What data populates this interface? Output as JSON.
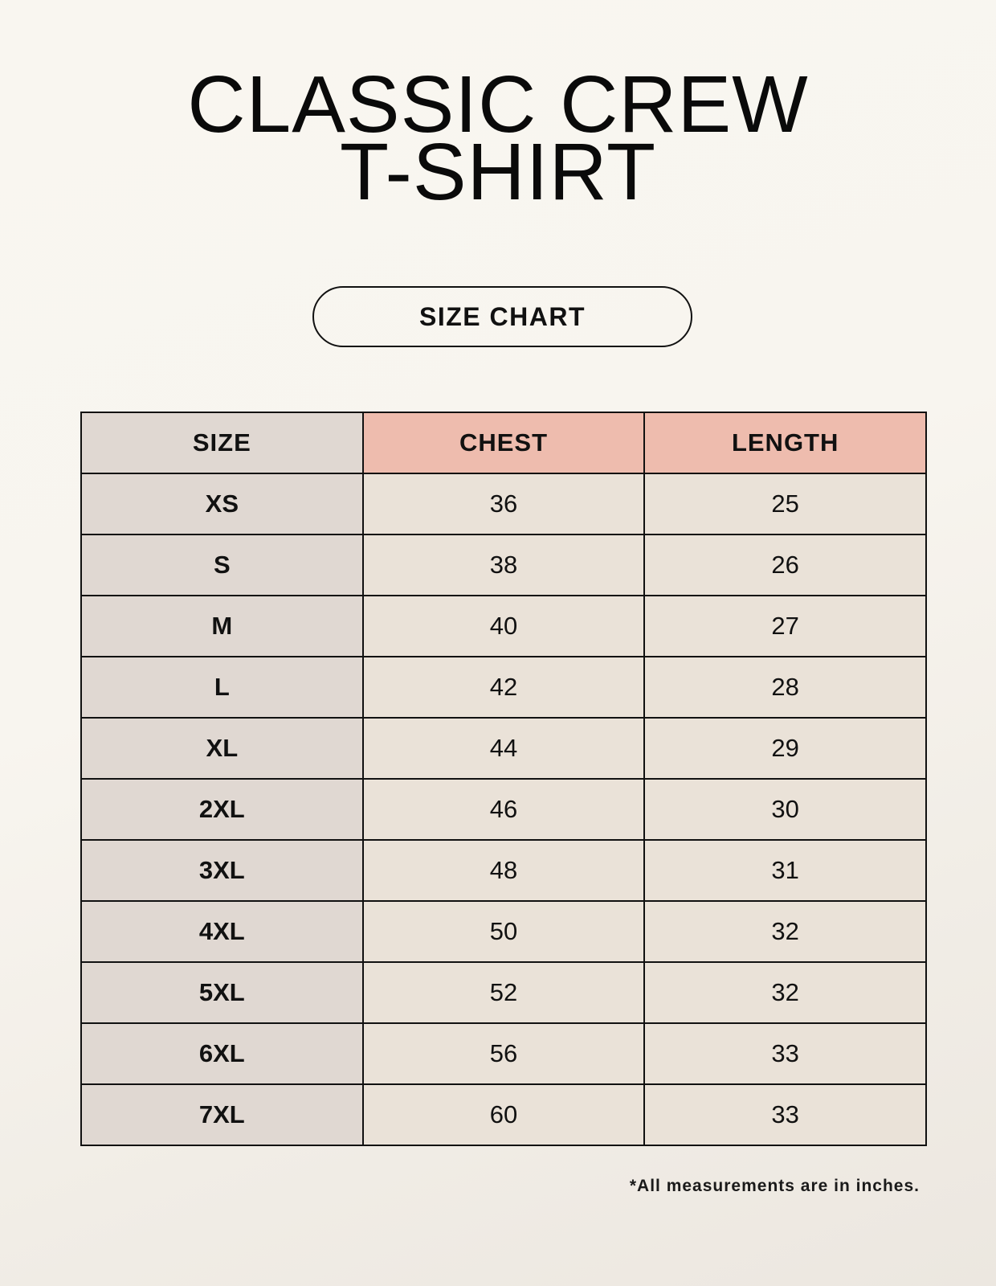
{
  "title": {
    "line1": "CLASSIC CREW",
    "line2": "T-SHIRT"
  },
  "badge": "SIZE CHART",
  "table": {
    "headers": [
      "SIZE",
      "CHEST",
      "LENGTH"
    ],
    "rows": [
      [
        "XS",
        "36",
        "25"
      ],
      [
        "S",
        "38",
        "26"
      ],
      [
        "M",
        "40",
        "27"
      ],
      [
        "L",
        "42",
        "28"
      ],
      [
        "XL",
        "44",
        "29"
      ],
      [
        "2XL",
        "46",
        "30"
      ],
      [
        "3XL",
        "48",
        "31"
      ],
      [
        "4XL",
        "50",
        "32"
      ],
      [
        "5XL",
        "52",
        "32"
      ],
      [
        "6XL",
        "56",
        "33"
      ],
      [
        "7XL",
        "60",
        "33"
      ]
    ]
  },
  "footnote": "*All measurements are in inches.",
  "colors": {
    "header_accent": "#eebcae",
    "size_column": "#e0d8d2",
    "value_cells": "#eae2d8"
  }
}
